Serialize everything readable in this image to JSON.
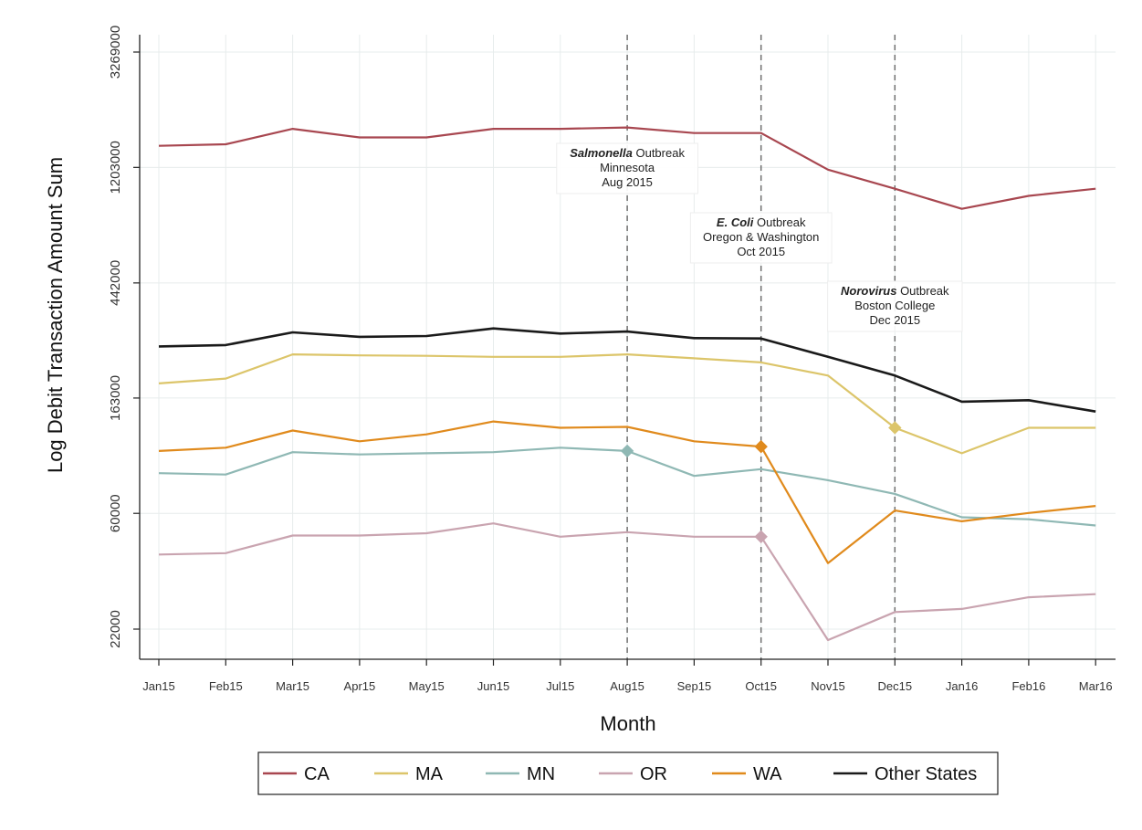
{
  "chart_data": {
    "type": "line",
    "xlabel": "Month",
    "ylabel": "Log Debit Transaction Amount Sum",
    "y_scale": "log",
    "grid": true,
    "legend_position": "bottom",
    "categories": [
      "Jan15",
      "Feb15",
      "Mar15",
      "Apr15",
      "May15",
      "Jun15",
      "Jul15",
      "Aug15",
      "Sep15",
      "Oct15",
      "Nov15",
      "Dec15",
      "Jan16",
      "Feb16",
      "Mar16"
    ],
    "y_ticks": [
      22000,
      60000,
      163000,
      442000,
      1203000,
      3269000
    ],
    "y_tick_labels": [
      "22000",
      "60000",
      "163000",
      "442000",
      "1203000",
      "3269000"
    ],
    "series": [
      {
        "name": "CA",
        "color": "#a84750",
        "values": [
          1450000,
          1470000,
          1680000,
          1560000,
          1560000,
          1680000,
          1680000,
          1700000,
          1620000,
          1620000,
          1180000,
          1000000,
          840000,
          940000,
          1000000
        ]
      },
      {
        "name": "MA",
        "color": "#dcc56a",
        "values": [
          185000,
          193000,
          238000,
          236000,
          235000,
          233000,
          233000,
          238000,
          230000,
          222000,
          198000,
          126000,
          101000,
          126000,
          126000
        ]
      },
      {
        "name": "MN",
        "color": "#8fb8b4",
        "values": [
          85000,
          84000,
          102000,
          100000,
          101000,
          102000,
          106000,
          103000,
          83000,
          88000,
          80000,
          71000,
          58000,
          57000,
          54000
        ]
      },
      {
        "name": "OR",
        "color": "#c9a4b0",
        "values": [
          42000,
          42500,
          49500,
          49500,
          50500,
          55000,
          49000,
          51000,
          49000,
          49000,
          20000,
          25500,
          26200,
          29000,
          29800
        ]
      },
      {
        "name": "WA",
        "color": "#e08a1c",
        "values": [
          103000,
          106000,
          123000,
          112000,
          119000,
          133000,
          126000,
          127000,
          112000,
          107000,
          39000,
          61500,
          56000,
          60200,
          64000
        ]
      },
      {
        "name": "Other States",
        "color": "#1a1a1a",
        "values": [
          255000,
          258000,
          288000,
          277000,
          279000,
          298000,
          285000,
          290000,
          274000,
          273000,
          233000,
          198000,
          158000,
          160000,
          145000
        ]
      }
    ],
    "highlight_points": [
      {
        "series": "MN",
        "category": "Aug15",
        "value": 103000,
        "color": "#8fb8b4"
      },
      {
        "series": "WA",
        "category": "Oct15",
        "value": 107000,
        "color": "#e08a1c"
      },
      {
        "series": "OR",
        "category": "Oct15",
        "value": 49000,
        "color": "#c9a4b0"
      },
      {
        "series": "MA",
        "category": "Dec15",
        "value": 126000,
        "color": "#dcc56a"
      }
    ],
    "vlines": [
      "Aug15",
      "Oct15",
      "Dec15"
    ],
    "annotations": [
      {
        "category": "Aug15",
        "italic": "Salmonella",
        "rest": " Outbreak",
        "line2": "Minnesota",
        "line3": "Aug 2015"
      },
      {
        "category": "Oct15",
        "italic": "E. Coli",
        "rest": " Outbreak",
        "line2": "Oregon & Washington",
        "line3": "Oct 2015"
      },
      {
        "category": "Dec15",
        "italic": "Norovirus",
        "rest": " Outbreak",
        "line2": "Boston College",
        "line3": "Dec 2015"
      }
    ]
  }
}
